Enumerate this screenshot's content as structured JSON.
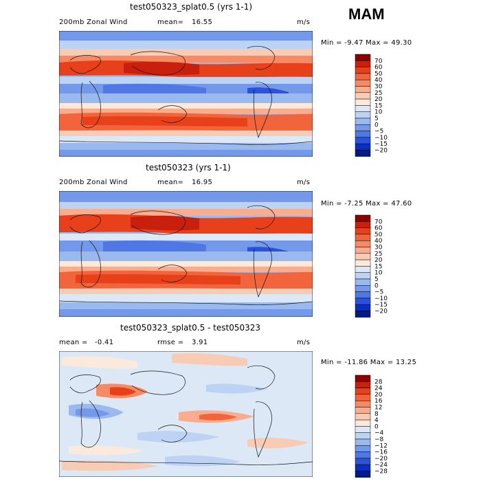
{
  "season": "MAM",
  "panels": [
    {
      "title": "test050323_splat0.5 (yrs 1-1)",
      "left_label": "200mb Zonal Wind",
      "stat1_label": "mean=",
      "stat1_value": "16.55",
      "units": "m/s",
      "minmax_text": "Min =  -9.47  Max =  49.30"
    },
    {
      "title": "test050323 (yrs 1-1)",
      "left_label": "200mb Zonal Wind",
      "stat1_label": "mean=",
      "stat1_value": "16.95",
      "units": "m/s",
      "minmax_text": "Min =  -7.25  Max =  47.60"
    },
    {
      "title": "test050323_splat0.5 - test050323",
      "left_label": "mean =",
      "left_value": "-0.41",
      "stat1_label": "rmse =",
      "stat1_value": "3.91",
      "units": "m/s",
      "minmax_text": "Min =  -11.86  Max =  13.25"
    }
  ],
  "chart_data": {
    "type": "heatmap",
    "description_labels": [
      "200mb Zonal Wind"
    ],
    "colorbars": [
      {
        "levels": [
          70,
          60,
          50,
          40,
          30,
          25,
          20,
          15,
          10,
          5,
          0,
          -5,
          -10,
          -15,
          -20
        ],
        "colors": [
          "#8b0000",
          "#c8200d",
          "#e8401a",
          "#f2643b",
          "#f58a65",
          "#f7ad8e",
          "#f8ccb4",
          "#fbe9dc",
          "#dde8f7",
          "#bcd3f4",
          "#9ab9ef",
          "#7499ea",
          "#4f78e4",
          "#2b52d8",
          "#0a2fc0",
          "#001a8a"
        ]
      },
      {
        "levels": [
          70,
          60,
          50,
          40,
          30,
          25,
          20,
          15,
          10,
          5,
          0,
          -5,
          -10,
          -15,
          -20
        ],
        "colors": [
          "#8b0000",
          "#c8200d",
          "#e8401a",
          "#f2643b",
          "#f58a65",
          "#f7ad8e",
          "#f8ccb4",
          "#fbe9dc",
          "#dde8f7",
          "#bcd3f4",
          "#9ab9ef",
          "#7499ea",
          "#4f78e4",
          "#2b52d8",
          "#0a2fc0",
          "#001a8a"
        ]
      },
      {
        "levels": [
          28,
          24,
          20,
          16,
          12,
          8,
          4,
          0,
          -4,
          -8,
          -12,
          -16,
          -20,
          -24,
          -28
        ],
        "colors": [
          "#8b0000",
          "#c8200d",
          "#e8401a",
          "#f2643b",
          "#f58a65",
          "#f7ad8e",
          "#f8ccb4",
          "#fbe9dc",
          "#dde8f7",
          "#bcd3f4",
          "#9ab9ef",
          "#7499ea",
          "#4f78e4",
          "#2b52d8",
          "#0a2fc0",
          "#001a8a"
        ]
      }
    ]
  }
}
